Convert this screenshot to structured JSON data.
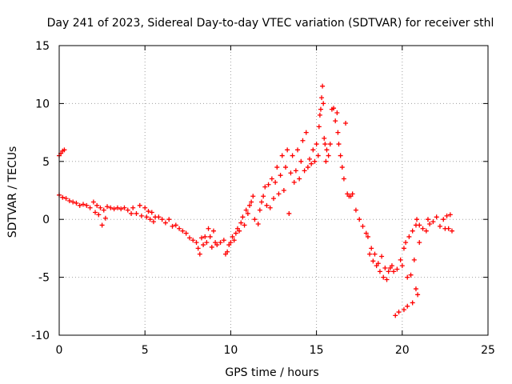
{
  "chart_data": {
    "type": "scatter",
    "title": "Day 241 of 2023, Sidereal Day-to-day VTEC variation (SDTVAR) for receiver sthl",
    "xlabel": "GPS time / hours",
    "ylabel": "SDTVAR / TECUs",
    "xlim": [
      0,
      25
    ],
    "ylim": [
      -10,
      15
    ],
    "x_ticks": [
      0,
      5,
      10,
      15,
      20,
      25
    ],
    "y_ticks": [
      -10,
      -5,
      0,
      5,
      10,
      15
    ],
    "grid": true,
    "marker": "+",
    "marker_color": "#ff0000",
    "series": [
      {
        "name": "SDTVAR",
        "points": [
          [
            0.0,
            5.5
          ],
          [
            0.1,
            5.7
          ],
          [
            0.2,
            5.9
          ],
          [
            0.3,
            6.0
          ],
          [
            0.0,
            2.1
          ],
          [
            0.2,
            1.9
          ],
          [
            0.4,
            1.8
          ],
          [
            0.6,
            1.6
          ],
          [
            0.8,
            1.5
          ],
          [
            1.0,
            1.4
          ],
          [
            1.2,
            1.2
          ],
          [
            1.4,
            1.3
          ],
          [
            1.6,
            1.2
          ],
          [
            1.8,
            1.0
          ],
          [
            2.0,
            1.5
          ],
          [
            2.1,
            0.6
          ],
          [
            2.2,
            1.2
          ],
          [
            2.3,
            0.4
          ],
          [
            2.4,
            1.0
          ],
          [
            2.5,
            -0.5
          ],
          [
            2.6,
            0.8
          ],
          [
            2.7,
            0.1
          ],
          [
            2.8,
            1.1
          ],
          [
            3.0,
            1.0
          ],
          [
            3.2,
            0.9
          ],
          [
            3.4,
            1.0
          ],
          [
            3.6,
            0.9
          ],
          [
            3.8,
            1.0
          ],
          [
            4.0,
            0.8
          ],
          [
            4.2,
            0.5
          ],
          [
            4.3,
            1.0
          ],
          [
            4.5,
            0.5
          ],
          [
            4.7,
            1.2
          ],
          [
            4.8,
            0.3
          ],
          [
            5.0,
            1.0
          ],
          [
            5.1,
            0.2
          ],
          [
            5.2,
            0.7
          ],
          [
            5.3,
            0.0
          ],
          [
            5.4,
            0.6
          ],
          [
            5.5,
            -0.2
          ],
          [
            5.6,
            0.2
          ],
          [
            5.8,
            0.2
          ],
          [
            6.0,
            0.0
          ],
          [
            6.2,
            -0.3
          ],
          [
            6.4,
            0.0
          ],
          [
            6.6,
            -0.6
          ],
          [
            6.8,
            -0.5
          ],
          [
            7.0,
            -0.8
          ],
          [
            7.2,
            -1.0
          ],
          [
            7.4,
            -1.2
          ],
          [
            7.6,
            -1.6
          ],
          [
            7.8,
            -1.8
          ],
          [
            8.0,
            -2.0
          ],
          [
            8.1,
            -2.5
          ],
          [
            8.2,
            -3.0
          ],
          [
            8.3,
            -1.6
          ],
          [
            8.4,
            -2.2
          ],
          [
            8.5,
            -1.5
          ],
          [
            8.6,
            -2.0
          ],
          [
            8.7,
            -0.8
          ],
          [
            8.8,
            -1.5
          ],
          [
            8.9,
            -2.4
          ],
          [
            9.0,
            -1.0
          ],
          [
            9.1,
            -2.0
          ],
          [
            9.2,
            -2.2
          ],
          [
            9.4,
            -2.0
          ],
          [
            9.6,
            -1.8
          ],
          [
            9.7,
            -3.0
          ],
          [
            9.8,
            -2.8
          ],
          [
            9.9,
            -2.2
          ],
          [
            10.0,
            -2.0
          ],
          [
            10.1,
            -1.5
          ],
          [
            10.2,
            -1.8
          ],
          [
            10.3,
            -1.2
          ],
          [
            10.4,
            -0.8
          ],
          [
            10.5,
            -1.0
          ],
          [
            10.6,
            -0.3
          ],
          [
            10.7,
            0.2
          ],
          [
            10.8,
            -0.5
          ],
          [
            10.9,
            0.8
          ],
          [
            11.0,
            0.5
          ],
          [
            11.1,
            1.2
          ],
          [
            11.2,
            1.5
          ],
          [
            11.3,
            2.0
          ],
          [
            11.4,
            0.0
          ],
          [
            11.6,
            -0.4
          ],
          [
            11.7,
            0.8
          ],
          [
            11.8,
            1.5
          ],
          [
            11.9,
            2.0
          ],
          [
            12.0,
            2.8
          ],
          [
            12.1,
            1.2
          ],
          [
            12.2,
            3.0
          ],
          [
            12.3,
            1.0
          ],
          [
            12.4,
            3.5
          ],
          [
            12.5,
            1.8
          ],
          [
            12.6,
            3.2
          ],
          [
            12.7,
            4.5
          ],
          [
            12.8,
            2.2
          ],
          [
            12.9,
            3.8
          ],
          [
            13.0,
            5.5
          ],
          [
            13.1,
            2.5
          ],
          [
            13.2,
            4.5
          ],
          [
            13.3,
            6.0
          ],
          [
            13.4,
            0.5
          ],
          [
            13.5,
            4.0
          ],
          [
            13.6,
            5.5
          ],
          [
            13.7,
            3.2
          ],
          [
            13.8,
            4.2
          ],
          [
            13.9,
            6.0
          ],
          [
            14.0,
            3.5
          ],
          [
            14.1,
            5.0
          ],
          [
            14.2,
            6.8
          ],
          [
            14.3,
            4.2
          ],
          [
            14.4,
            7.5
          ],
          [
            14.5,
            4.5
          ],
          [
            14.6,
            5.2
          ],
          [
            14.7,
            4.8
          ],
          [
            14.8,
            6.0
          ],
          [
            14.9,
            5.0
          ],
          [
            15.0,
            6.5
          ],
          [
            15.1,
            5.5
          ],
          [
            15.15,
            8.0
          ],
          [
            15.2,
            9.0
          ],
          [
            15.25,
            9.5
          ],
          [
            15.3,
            10.5
          ],
          [
            15.35,
            11.5
          ],
          [
            15.4,
            10.0
          ],
          [
            15.45,
            7.0
          ],
          [
            15.5,
            6.5
          ],
          [
            15.55,
            5.0
          ],
          [
            15.6,
            6.0
          ],
          [
            15.7,
            5.5
          ],
          [
            15.8,
            6.5
          ],
          [
            15.9,
            9.5
          ],
          [
            16.0,
            9.6
          ],
          [
            16.1,
            8.5
          ],
          [
            16.2,
            9.2
          ],
          [
            16.25,
            7.5
          ],
          [
            16.3,
            6.5
          ],
          [
            16.4,
            5.5
          ],
          [
            16.5,
            4.5
          ],
          [
            16.6,
            3.5
          ],
          [
            16.7,
            8.3
          ],
          [
            16.8,
            2.2
          ],
          [
            16.9,
            2.0
          ],
          [
            17.0,
            2.0
          ],
          [
            17.1,
            2.2
          ],
          [
            17.3,
            0.8
          ],
          [
            17.5,
            0.0
          ],
          [
            17.7,
            -0.6
          ],
          [
            17.9,
            -1.2
          ],
          [
            18.0,
            -1.5
          ],
          [
            18.1,
            -3.0
          ],
          [
            18.2,
            -2.5
          ],
          [
            18.3,
            -3.6
          ],
          [
            18.4,
            -3.0
          ],
          [
            18.5,
            -4.0
          ],
          [
            18.6,
            -3.8
          ],
          [
            18.7,
            -4.5
          ],
          [
            18.8,
            -3.2
          ],
          [
            18.9,
            -5.0
          ],
          [
            19.0,
            -4.2
          ],
          [
            19.1,
            -5.2
          ],
          [
            19.2,
            -4.5
          ],
          [
            19.3,
            -4.2
          ],
          [
            19.4,
            -4.0
          ],
          [
            19.5,
            -4.5
          ],
          [
            19.6,
            -8.3
          ],
          [
            19.7,
            -4.3
          ],
          [
            19.8,
            -8.0
          ],
          [
            19.9,
            -3.5
          ],
          [
            20.0,
            -4.0
          ],
          [
            20.1,
            -2.5
          ],
          [
            20.2,
            -2.0
          ],
          [
            20.3,
            -5.0
          ],
          [
            20.4,
            -1.5
          ],
          [
            20.5,
            -4.8
          ],
          [
            20.6,
            -1.0
          ],
          [
            20.7,
            -3.5
          ],
          [
            20.8,
            -0.5
          ],
          [
            20.9,
            -6.5
          ],
          [
            21.0,
            -2.0
          ],
          [
            20.1,
            -7.8
          ],
          [
            20.3,
            -7.5
          ],
          [
            20.6,
            -7.2
          ],
          [
            20.8,
            -6.0
          ],
          [
            20.85,
            0.0
          ],
          [
            21.0,
            -0.5
          ],
          [
            21.2,
            -0.8
          ],
          [
            21.4,
            -1.0
          ],
          [
            21.5,
            0.0
          ],
          [
            21.6,
            -0.4
          ],
          [
            21.8,
            -0.2
          ],
          [
            22.0,
            0.2
          ],
          [
            22.2,
            -0.6
          ],
          [
            22.4,
            0.0
          ],
          [
            22.5,
            -0.8
          ],
          [
            22.6,
            0.3
          ],
          [
            22.7,
            -0.8
          ],
          [
            22.8,
            0.4
          ],
          [
            22.9,
            -1.0
          ]
        ]
      }
    ]
  }
}
